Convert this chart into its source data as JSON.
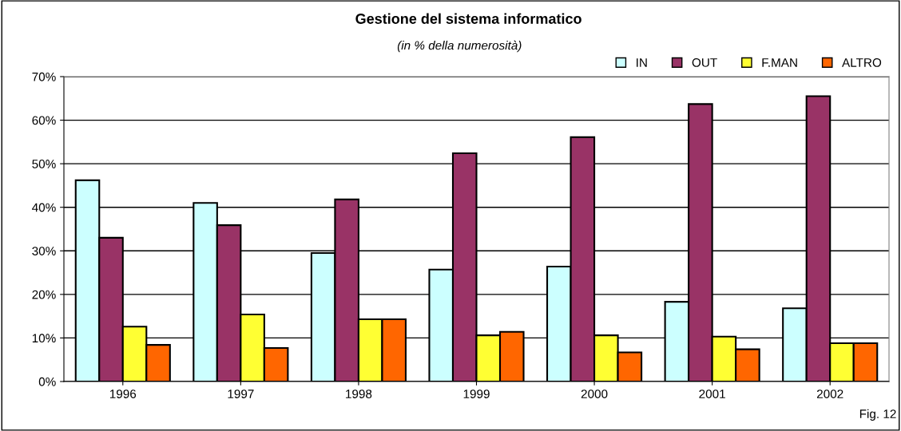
{
  "chart_data": {
    "type": "bar",
    "title": "Gestione del sistema informatico",
    "subtitle": "(in % della numerosità)",
    "categories": [
      "1996",
      "1997",
      "1998",
      "1999",
      "2000",
      "2001",
      "2002"
    ],
    "series": [
      {
        "name": "IN",
        "color": "#ccffff",
        "values": [
          46.2,
          41.0,
          29.5,
          25.7,
          26.4,
          18.3,
          16.8
        ]
      },
      {
        "name": "OUT",
        "color": "#993366",
        "values": [
          33.0,
          35.9,
          41.8,
          52.4,
          56.1,
          63.7,
          65.5
        ]
      },
      {
        "name": "F.MAN",
        "color": "#ffff33",
        "values": [
          12.6,
          15.4,
          14.3,
          10.6,
          10.6,
          10.3,
          8.8
        ]
      },
      {
        "name": "ALTRO",
        "color": "#ff6600",
        "values": [
          8.4,
          7.7,
          14.3,
          11.4,
          6.7,
          7.4,
          8.8
        ]
      }
    ],
    "ylim": [
      0,
      70
    ],
    "yticks": [
      {
        "value": 0,
        "label": "0%"
      },
      {
        "value": 10,
        "label": "10%"
      },
      {
        "value": 20,
        "label": "20%"
      },
      {
        "value": 30,
        "label": "30%"
      },
      {
        "value": 40,
        "label": "40%"
      },
      {
        "value": 50,
        "label": "50%"
      },
      {
        "value": 60,
        "label": "60%"
      },
      {
        "value": 70,
        "label": "70%"
      }
    ],
    "grid": "y",
    "legend": "top right",
    "annotations": [
      "Fig. 12"
    ]
  }
}
